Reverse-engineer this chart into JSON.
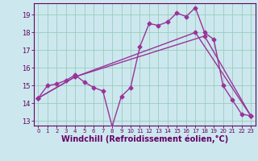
{
  "xlabel": "Windchill (Refroidissement éolien,°C)",
  "bg_color": "#cce8ee",
  "line_color": "#993399",
  "grid_color": "#99ccbb",
  "xlim": [
    -0.5,
    23.5
  ],
  "ylim": [
    12.75,
    19.65
  ],
  "xticks": [
    0,
    1,
    2,
    3,
    4,
    5,
    6,
    7,
    8,
    9,
    10,
    11,
    12,
    13,
    14,
    15,
    16,
    17,
    18,
    19,
    20,
    21,
    22,
    23
  ],
  "yticks": [
    13,
    14,
    15,
    16,
    17,
    18,
    19
  ],
  "series1_x": [
    0,
    1,
    2,
    3,
    4,
    5,
    6,
    7,
    8,
    9,
    10,
    11,
    12,
    13,
    14,
    15,
    16,
    17,
    18,
    19,
    20,
    21,
    22,
    23
  ],
  "series1_y": [
    14.3,
    15.0,
    15.1,
    15.3,
    15.6,
    15.2,
    14.9,
    14.7,
    12.7,
    14.4,
    14.9,
    17.2,
    18.5,
    18.4,
    18.6,
    19.1,
    18.9,
    19.4,
    18.0,
    17.6,
    15.0,
    14.2,
    13.4,
    13.3
  ],
  "series2_x": [
    0,
    4,
    17,
    23
  ],
  "series2_y": [
    14.3,
    15.5,
    18.0,
    13.3
  ],
  "series3_x": [
    0,
    4,
    18,
    23
  ],
  "series3_y": [
    14.3,
    15.5,
    17.8,
    13.3
  ],
  "marker": "D",
  "markersize": 2.5,
  "linewidth": 1.0,
  "xlabel_fontsize": 7,
  "tick_fontsize": 6,
  "axis_color": "#660066"
}
